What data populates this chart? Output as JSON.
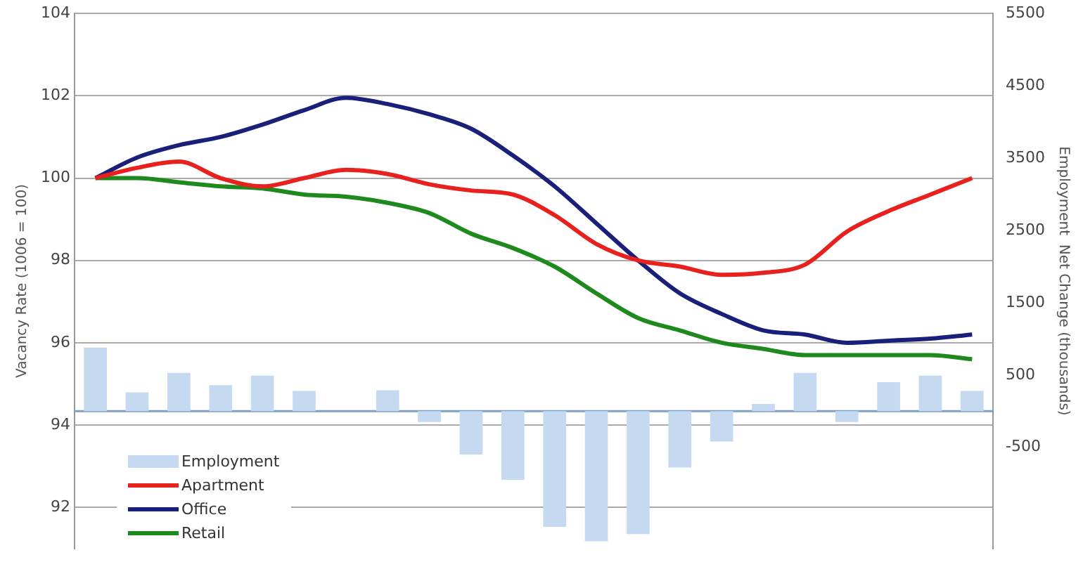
{
  "chart_data": {
    "type": "line",
    "ylabel": "Vacancy Rate (1006 = 100)",
    "y2label": "Employment  Net Change (thousands)",
    "categories": [
      null,
      null,
      null,
      null,
      null,
      null,
      null,
      null,
      null,
      null,
      null,
      null,
      null,
      null,
      null,
      null,
      null,
      null,
      null,
      null,
      null,
      null
    ],
    "series": [
      {
        "name": "Employment",
        "type": "bar",
        "axis": "y2",
        "color": "#c5d9f1",
        "values": [
          880,
          260,
          530,
          360,
          490,
          280,
          null,
          290,
          -150,
          -600,
          -950,
          -1600,
          -1800,
          -1700,
          -780,
          -420,
          100,
          530,
          -150,
          400,
          490,
          280
        ]
      },
      {
        "name": "Apartment",
        "color": "#e8201e",
        "values": [
          100,
          100.25,
          100.4,
          100,
          99.8,
          100,
          100.2,
          100.1,
          99.85,
          99.7,
          99.6,
          99.1,
          98.4,
          98.0,
          97.85,
          97.65,
          97.7,
          97.9,
          98.7,
          99.2,
          99.6,
          100
        ]
      },
      {
        "name": "Office",
        "color": "#1a1f7a",
        "values": [
          100,
          100.5,
          100.8,
          101.0,
          101.3,
          101.65,
          101.95,
          101.8,
          101.55,
          101.2,
          100.55,
          99.8,
          98.9,
          98.0,
          97.2,
          96.7,
          96.3,
          96.2,
          96.0,
          96.05,
          96.1,
          96.2
        ]
      },
      {
        "name": "Retail",
        "color": "#1e8a1e",
        "values": [
          100,
          100,
          99.9,
          99.8,
          99.75,
          99.6,
          99.55,
          99.4,
          99.15,
          98.65,
          98.3,
          97.85,
          97.2,
          96.6,
          96.3,
          96.0,
          95.85,
          95.7,
          95.7,
          95.7,
          95.7,
          95.6
        ]
      }
    ],
    "ylim": [
      91,
      104
    ],
    "yticks": [
      92,
      94,
      96,
      98,
      100,
      102,
      104
    ],
    "y2lim": [
      -1900,
      5500
    ],
    "y2ticks": [
      -500,
      500,
      1500,
      2500,
      3500,
      4500,
      5500
    ],
    "ref_lines": [
      {
        "axis": "y2",
        "value": 0,
        "color": "#7f9fc7"
      }
    ],
    "grid": "y",
    "legend": "bottom left",
    "tick_labels": "y",
    "marker": "none"
  }
}
